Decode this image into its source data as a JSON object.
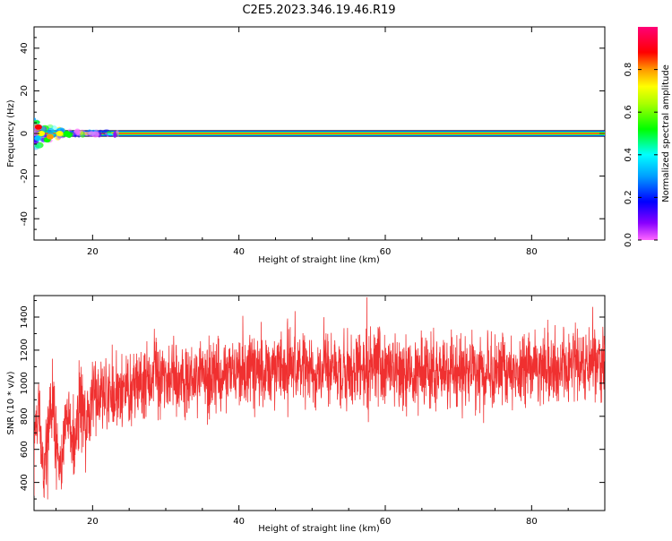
{
  "title": "C2E5.2023.346.19.46.R19",
  "colors": {
    "snr_line": "#f03030",
    "ridge": "#e01a1a",
    "band_outline": "#000000",
    "axis": "#000000"
  },
  "chart_data": [
    {
      "type": "heatmap",
      "xlabel": "Height of straight line (km)",
      "ylabel": "Frequency (Hz)",
      "xlim": [
        12,
        90
      ],
      "ylim": [
        -50,
        50
      ],
      "xticks": [
        20,
        40,
        60,
        80
      ],
      "yticks": [
        -40,
        -20,
        0,
        20,
        40
      ],
      "colorbar": {
        "label": "Normalized spectral amplitude",
        "range": [
          0,
          1
        ],
        "ticks": [
          0.0,
          0.2,
          0.4,
          0.6,
          0.8
        ],
        "tick_labels": [
          "0.0",
          "0.2",
          "0.4",
          "0.6",
          "0.8"
        ],
        "colormap": "rainbow (magenta-blue-cyan-green-yellow-orange-red-pink)"
      },
      "ridge_frequency_hz": 0,
      "band_halfwidth_hz": 1.5,
      "near_field_x_range_km": [
        12,
        24
      ],
      "grid": false
    },
    {
      "type": "line",
      "xlabel": "Height of straight line (km)",
      "ylabel": "SNR (10 * v/v)",
      "xlim": [
        12,
        90
      ],
      "ylim": [
        230,
        1530
      ],
      "xticks": [
        20,
        40,
        60,
        80
      ],
      "yticks": [
        400,
        600,
        800,
        1000,
        1200,
        1400
      ],
      "series": [
        {
          "values_summary": [
            [
              12,
              560
            ],
            [
              13,
              620
            ],
            [
              14,
              700
            ],
            [
              15,
              680
            ],
            [
              16,
              640
            ],
            [
              17,
              700
            ],
            [
              18,
              760
            ],
            [
              19,
              820
            ],
            [
              20,
              880
            ],
            [
              22,
              930
            ],
            [
              24,
              960
            ],
            [
              26,
              980
            ],
            [
              28,
              1000
            ],
            [
              30,
              1020
            ],
            [
              35,
              1040
            ],
            [
              40,
              1060
            ],
            [
              45,
              1080
            ],
            [
              50,
              1090
            ],
            [
              55,
              1090
            ],
            [
              60,
              1080
            ],
            [
              65,
              1070
            ],
            [
              70,
              1060
            ],
            [
              75,
              1070
            ],
            [
              80,
              1080
            ],
            [
              85,
              1100
            ],
            [
              90,
              1140
            ]
          ],
          "noise_amplitude": 110,
          "max_value": 1520,
          "min_value": 240
        }
      ],
      "grid": false
    }
  ]
}
